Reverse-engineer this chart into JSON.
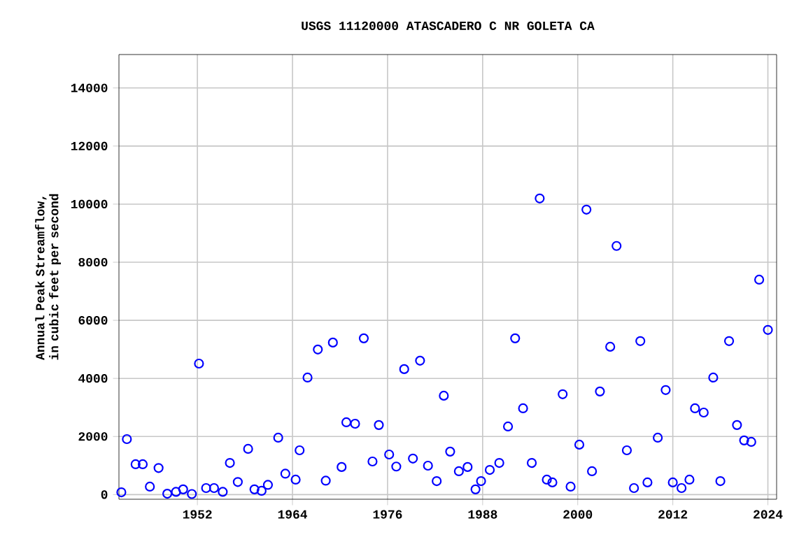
{
  "chart_data": {
    "type": "scatter",
    "title": "USGS 11120000 ATASCADERO C NR GOLETA CA",
    "ylabel": "Annual Peak Streamflow, in cubic feet per second",
    "x": [
      1942.4,
      1943.1,
      1944.2,
      1945.1,
      1946.0,
      1947.1,
      1948.2,
      1949.3,
      1950.2,
      1951.3,
      1952.2,
      1953.1,
      1954.1,
      1955.2,
      1956.1,
      1957.1,
      1958.4,
      1959.2,
      1960.1,
      1960.9,
      1962.2,
      1963.1,
      1964.4,
      1964.9,
      1965.9,
      1967.2,
      1968.2,
      1969.1,
      1970.2,
      1970.8,
      1971.9,
      1973.0,
      1974.1,
      1974.9,
      1976.2,
      1977.1,
      1978.1,
      1979.2,
      1980.1,
      1981.1,
      1982.2,
      1983.1,
      1983.9,
      1985.0,
      1986.1,
      1987.1,
      1987.8,
      1988.9,
      1990.1,
      1991.2,
      1992.1,
      1993.1,
      1994.2,
      1995.2,
      1996.1,
      1996.8,
      1998.1,
      1999.1,
      2000.2,
      2001.1,
      2001.8,
      2002.8,
      2004.1,
      2004.9,
      2006.2,
      2007.1,
      2007.9,
      2008.8,
      2010.1,
      2011.1,
      2012.0,
      2013.1,
      2014.1,
      2014.8,
      2015.9,
      2017.1,
      2018.0,
      2019.1,
      2020.1,
      2021.0,
      2021.9,
      2022.9,
      2024.0
    ],
    "series": [
      {
        "color": "#0000ff",
        "values": [
          80,
          1910,
          1045,
          1045,
          275,
          915,
          30,
          95,
          180,
          20,
          4510,
          225,
          225,
          95,
          1090,
          435,
          1575,
          180,
          130,
          335,
          1960,
          720,
          515,
          1525,
          4030,
          4995,
          480,
          5235,
          950,
          2490,
          2440,
          5380,
          1140,
          2395,
          1380,
          965,
          4320,
          1240,
          4610,
          995,
          465,
          3405,
          1480,
          805,
          950,
          180,
          465,
          850,
          1090,
          2345,
          5380,
          2970,
          1090,
          10195,
          515,
          420,
          3455,
          275,
          1720,
          9810,
          805,
          3550,
          5090,
          8560,
          1525,
          225,
          5285,
          420,
          1960,
          3600,
          420,
          225,
          515,
          2970,
          2825,
          4030,
          465,
          5285,
          2395,
          1865,
          1815,
          7400,
          5670
        ]
      }
    ],
    "xlim": [
      1942.1,
      2025.1
    ],
    "ylim": [
      -160,
      15150
    ],
    "xticks": [
      1952,
      1964,
      1976,
      1988,
      2000,
      2012,
      2024
    ],
    "yticks": [
      0,
      2000,
      4000,
      6000,
      8000,
      10000,
      12000,
      14000
    ],
    "grid": true,
    "marker": "circle"
  }
}
